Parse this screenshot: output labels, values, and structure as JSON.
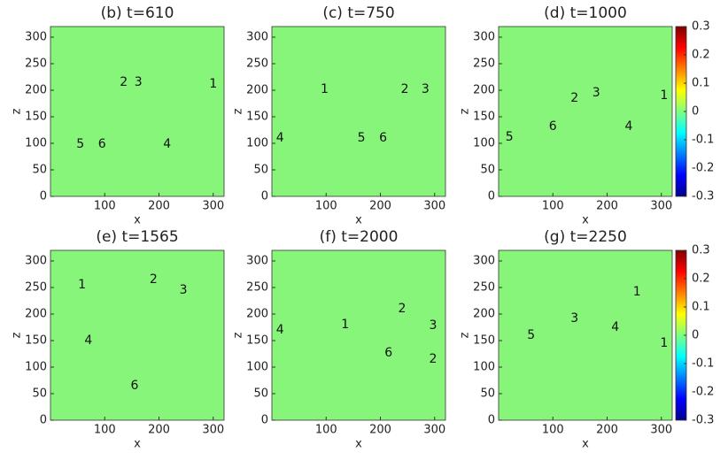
{
  "chart_data": [
    {
      "type": "heatmap",
      "title": "(b) t=610",
      "xlabel": "x",
      "ylabel": "z",
      "colormap": "jet",
      "background_color": "#86f57a",
      "xlim": [
        0,
        320
      ],
      "ylim": [
        0,
        320
      ],
      "xticks": [
        100,
        200,
        300
      ],
      "yticks": [
        0,
        50,
        100,
        150,
        200,
        250,
        300
      ],
      "annotations": [
        {
          "text": "2",
          "x": 135,
          "y": 215
        },
        {
          "text": "3",
          "x": 162,
          "y": 215
        },
        {
          "text": "1",
          "x": 300,
          "y": 212
        },
        {
          "text": "5",
          "x": 55,
          "y": 98
        },
        {
          "text": "6",
          "x": 95,
          "y": 98
        },
        {
          "text": "4",
          "x": 215,
          "y": 98
        }
      ]
    },
    {
      "type": "heatmap",
      "title": "(c) t=750",
      "xlabel": "x",
      "ylabel": "z",
      "colormap": "jet",
      "background_color": "#86f57a",
      "xlim": [
        0,
        320
      ],
      "ylim": [
        0,
        320
      ],
      "xticks": [
        100,
        200,
        300
      ],
      "yticks": [
        0,
        50,
        100,
        150,
        200,
        250,
        300
      ],
      "annotations": [
        {
          "text": "1",
          "x": 97,
          "y": 202
        },
        {
          "text": "2",
          "x": 245,
          "y": 202
        },
        {
          "text": "3",
          "x": 283,
          "y": 202
        },
        {
          "text": "4",
          "x": 15,
          "y": 110
        },
        {
          "text": "5",
          "x": 165,
          "y": 110
        },
        {
          "text": "6",
          "x": 205,
          "y": 110
        }
      ]
    },
    {
      "type": "heatmap",
      "title": "(d) t=1000",
      "xlabel": "x",
      "ylabel": "z",
      "colormap": "jet",
      "background_color": "#86f57a",
      "xlim": [
        0,
        320
      ],
      "ylim": [
        0,
        320
      ],
      "xticks": [
        100,
        200,
        300
      ],
      "yticks": [
        0,
        50,
        100,
        150,
        200,
        250,
        300
      ],
      "colorbar": {
        "lim": [
          -0.3,
          0.3
        ],
        "ticks": [
          -0.3,
          -0.2,
          -0.1,
          0,
          0.1,
          0.2,
          0.3
        ]
      },
      "annotations": [
        {
          "text": "1",
          "x": 305,
          "y": 190
        },
        {
          "text": "2",
          "x": 140,
          "y": 185
        },
        {
          "text": "3",
          "x": 180,
          "y": 195
        },
        {
          "text": "4",
          "x": 240,
          "y": 132
        },
        {
          "text": "5",
          "x": 20,
          "y": 112
        },
        {
          "text": "6",
          "x": 100,
          "y": 132
        }
      ]
    },
    {
      "type": "heatmap",
      "title": "(e) t=1565",
      "xlabel": "x",
      "ylabel": "z",
      "colormap": "jet",
      "background_color": "#86f57a",
      "xlim": [
        0,
        320
      ],
      "ylim": [
        0,
        320
      ],
      "xticks": [
        100,
        200,
        300
      ],
      "yticks": [
        0,
        50,
        100,
        150,
        200,
        250,
        300
      ],
      "annotations": [
        {
          "text": "1",
          "x": 58,
          "y": 255
        },
        {
          "text": "2",
          "x": 190,
          "y": 265
        },
        {
          "text": "3",
          "x": 245,
          "y": 245
        },
        {
          "text": "4",
          "x": 70,
          "y": 150
        },
        {
          "text": "6",
          "x": 155,
          "y": 65
        }
      ]
    },
    {
      "type": "heatmap",
      "title": "(f) t=2000",
      "xlabel": "x",
      "ylabel": "z",
      "colormap": "jet",
      "background_color": "#86f57a",
      "xlim": [
        0,
        320
      ],
      "ylim": [
        0,
        320
      ],
      "xticks": [
        100,
        200,
        300
      ],
      "yticks": [
        0,
        50,
        100,
        150,
        200,
        250,
        300
      ],
      "annotations": [
        {
          "text": "4",
          "x": 15,
          "y": 170
        },
        {
          "text": "1",
          "x": 135,
          "y": 180
        },
        {
          "text": "2",
          "x": 240,
          "y": 210
        },
        {
          "text": "3",
          "x": 297,
          "y": 178
        },
        {
          "text": "6",
          "x": 215,
          "y": 127
        },
        {
          "text": "2",
          "x": 297,
          "y": 115
        }
      ]
    },
    {
      "type": "heatmap",
      "title": "(g) t=2250",
      "xlabel": "x",
      "ylabel": "z",
      "colormap": "jet",
      "background_color": "#86f57a",
      "xlim": [
        0,
        320
      ],
      "ylim": [
        0,
        320
      ],
      "xticks": [
        100,
        200,
        300
      ],
      "yticks": [
        0,
        50,
        100,
        150,
        200,
        250,
        300
      ],
      "colorbar": {
        "lim": [
          -0.3,
          0.3
        ],
        "ticks": [
          -0.3,
          -0.2,
          -0.1,
          0,
          0.1,
          0.2,
          0.3
        ]
      },
      "annotations": [
        {
          "text": "1",
          "x": 255,
          "y": 242
        },
        {
          "text": "3",
          "x": 140,
          "y": 192
        },
        {
          "text": "5",
          "x": 60,
          "y": 160
        },
        {
          "text": "4",
          "x": 215,
          "y": 175
        },
        {
          "text": "1",
          "x": 305,
          "y": 145
        }
      ]
    }
  ]
}
